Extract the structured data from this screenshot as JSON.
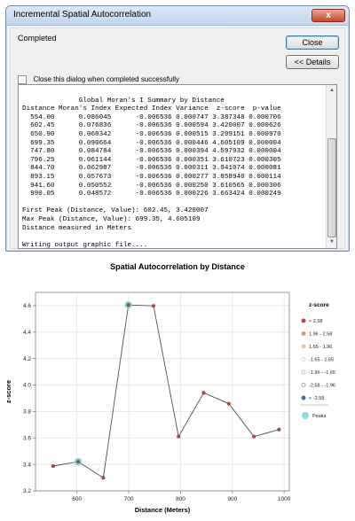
{
  "dialog": {
    "title": "Incremental Spatial Autocorrelation",
    "window_close_glyph": "x",
    "status": "Completed",
    "close_button": "Close",
    "details_button": "<< Details",
    "checkbox_label": "Close this dialog when completed successfully",
    "checkbox_checked": false,
    "log_lines": [
      "",
      "              Global Moran's I Summary by Distance",
      "Distance Moran's Index Expected Index Variance  z-score  p-value",
      "  554.00      0.086045      -0.006536 0.000747 3.387348 0.000706",
      "  602.45      0.076836      -0.006536 0.000594 3.420007 0.000626",
      "  650.90      0.068342      -0.006536 0.000515 3.299151 0.000970",
      "  699.35      0.090664      -0.006536 0.000446 4.605109 0.000004",
      "  747.80      0.084784      -0.006536 0.000394 4.597932 0.000004",
      "  796.25      0.061144      -0.006536 0.000351 3.610723 0.000305",
      "  844.70      0.062987      -0.006536 0.000311 3.941074 0.000081",
      "  893.15      0.057673      -0.006536 0.000277 3.858940 0.000114",
      "  941.60      0.050552      -0.006536 0.000250 3.610565 0.000306",
      "  990.05      0.048572      -0.006536 0.000226 3.663424 0.000249",
      "",
      "First Peak (Distance, Value): 602.45, 3.420007",
      "Max Peak (Distance, Value): 699.35, 4.605109",
      "Distance measured in Meters",
      "",
      "Writing output graphic file...."
    ]
  },
  "chart_data": {
    "type": "line",
    "title": "Spatial Autocorrelation by Distance",
    "xlabel": "Distance (Meters)",
    "ylabel": "z-score",
    "xlim": [
      520,
      1010
    ],
    "ylim": [
      3.2,
      4.7
    ],
    "xticks": [
      600,
      700,
      800,
      900,
      1000
    ],
    "yticks": [
      3.2,
      3.4,
      3.6,
      3.8,
      4.0,
      4.2,
      4.4,
      4.6
    ],
    "grid": true,
    "x": [
      554.0,
      602.45,
      650.9,
      699.35,
      747.8,
      796.25,
      844.7,
      893.15,
      941.6,
      990.05
    ],
    "y": [
      3.387348,
      3.420007,
      3.299151,
      4.605109,
      4.597932,
      3.610723,
      3.941074,
      3.85894,
      3.610565,
      3.663424
    ],
    "peaks_x": [
      602.45,
      699.35
    ],
    "legend": {
      "placement": "right",
      "title": "z-score",
      "classes": [
        {
          "label": "> 2.58",
          "color": "#b8453e",
          "fill": true
        },
        {
          "label": "1.96 - 2.58",
          "color": "#e0967a",
          "fill": true
        },
        {
          "label": "1.65 - 1.96",
          "color": "#f0c8a8",
          "fill": true
        },
        {
          "label": "-1.65 - 1.65",
          "color": "#d8d4c4",
          "fill": false
        },
        {
          "label": "-1.96 - -1.65",
          "color": "#b4c4d4",
          "fill": false
        },
        {
          "label": "-2.58 - -1.96",
          "color": "#8ca8c4",
          "fill": false
        },
        {
          "label": "< -2.58",
          "color": "#4a6fa0",
          "fill": true
        }
      ],
      "peaks_label": "Peaks",
      "peaks_color": "#6fd3d8"
    },
    "point_color": "#b8453e",
    "line_color": "#505050"
  }
}
